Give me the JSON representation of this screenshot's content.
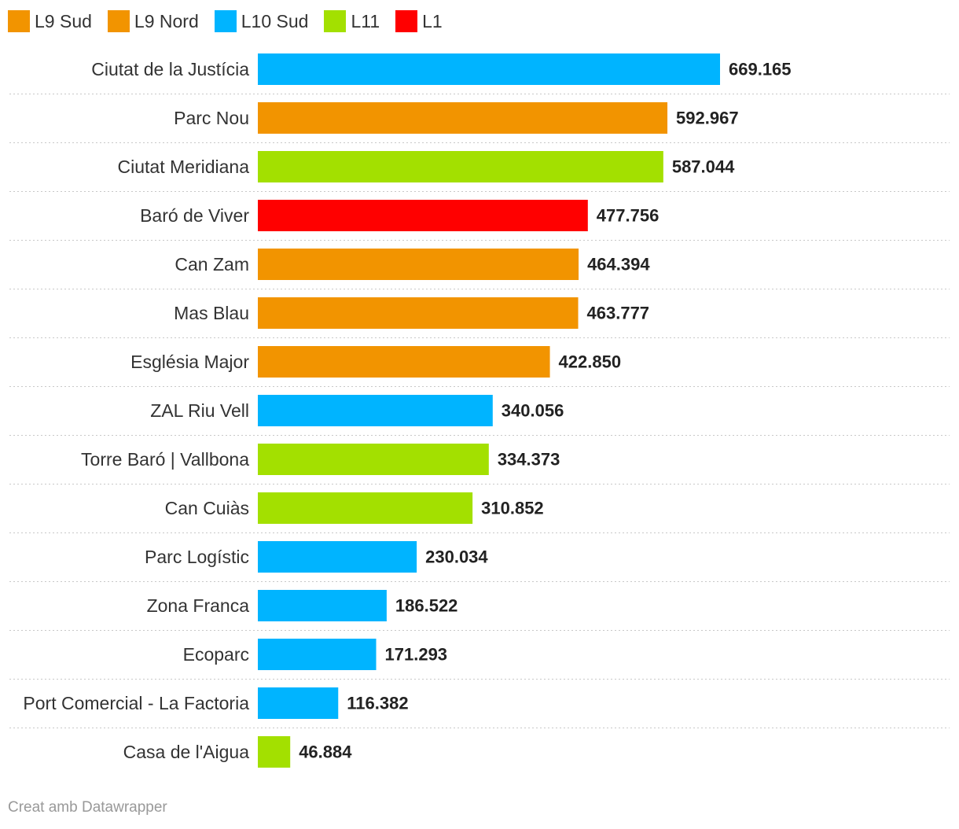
{
  "chart_data": {
    "type": "bar",
    "orientation": "horizontal",
    "title": "",
    "xlabel": "",
    "ylabel": "",
    "xlim": [
      0,
      669165
    ],
    "grid": false,
    "legend_position": "top-left",
    "legend": [
      {
        "name": "L9 Sud",
        "color": "#f29400"
      },
      {
        "name": "L9 Nord",
        "color": "#f29400"
      },
      {
        "name": "L10 Sud",
        "color": "#00b4ff"
      },
      {
        "name": "L11",
        "color": "#a3e000"
      },
      {
        "name": "L1",
        "color": "#ff0000"
      }
    ],
    "categories": [
      "Ciutat de la Justícia",
      "Parc Nou",
      "Ciutat Meridiana",
      "Baró de Viver",
      "Can Zam",
      "Mas Blau",
      "Església Major",
      "ZAL Riu Vell",
      "Torre Baró | Vallbona",
      "Can Cuiàs",
      "Parc Logístic",
      "Zona Franca",
      "Ecoparc",
      "Port Comercial - La Factoria",
      "Casa de l'Aigua"
    ],
    "values": [
      669165,
      592967,
      587044,
      477756,
      464394,
      463777,
      422850,
      340056,
      334373,
      310852,
      230034,
      186522,
      171293,
      116382,
      46884
    ],
    "value_labels": [
      "669.165",
      "592.967",
      "587.044",
      "477.756",
      "464.394",
      "463.777",
      "422.850",
      "340.056",
      "334.373",
      "310.852",
      "230.034",
      "186.522",
      "171.293",
      "116.382",
      "46.884"
    ],
    "colors": [
      "#00b4ff",
      "#f29400",
      "#a3e000",
      "#ff0000",
      "#f29400",
      "#f29400",
      "#f29400",
      "#00b4ff",
      "#a3e000",
      "#a3e000",
      "#00b4ff",
      "#00b4ff",
      "#00b4ff",
      "#00b4ff",
      "#a3e000"
    ]
  },
  "footer": {
    "credit": "Creat amb Datawrapper"
  }
}
